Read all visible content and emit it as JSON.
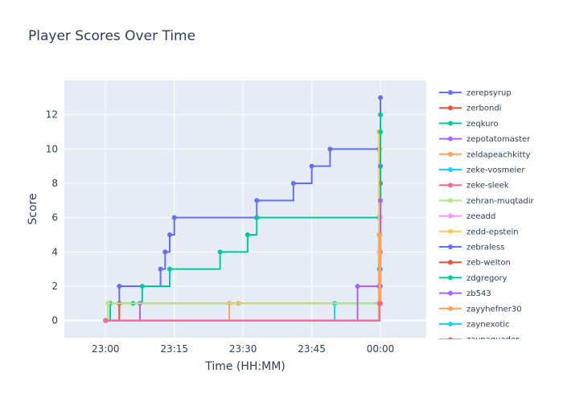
{
  "chart_data": {
    "type": "line",
    "line_shape": "step",
    "title": "Player Scores Over Time",
    "xlabel": "Time (HH:MM)",
    "ylabel": "Score",
    "x_ticks": [
      "23:00",
      "23:15",
      "23:30",
      "23:45",
      "00:00"
    ],
    "y_ticks": [
      0,
      2,
      4,
      6,
      8,
      10,
      12
    ],
    "xlim": [
      "22:51",
      "00:10"
    ],
    "ylim": [
      -1,
      14
    ],
    "grid": true,
    "legend_position": "right",
    "series": [
      {
        "name": "zerepsyrup",
        "color": "#636efa",
        "times": [
          "23:00",
          "23:03",
          "23:03",
          "23:12",
          "23:13",
          "23:14",
          "23:15",
          "23:33",
          "23:33",
          "23:41",
          "23:45",
          "23:49",
          "23:59.7",
          "00:00"
        ],
        "values": [
          0,
          1,
          2,
          3,
          4,
          5,
          6,
          6,
          7,
          8,
          9,
          10,
          10,
          13
        ]
      },
      {
        "name": "zerbondi",
        "color": "#ef553b",
        "times": [
          "23:00",
          "23:03",
          "23:59.7",
          "00:00"
        ],
        "values": [
          0,
          1,
          1,
          8
        ]
      },
      {
        "name": "zeqkuro",
        "color": "#00cc96",
        "times": [
          "23:00",
          "23:01",
          "23:06",
          "23:08",
          "23:14",
          "23:25",
          "23:31",
          "23:33",
          "23:59.7",
          "00:00"
        ],
        "values": [
          0,
          1,
          1,
          2,
          3,
          4,
          5,
          6,
          6,
          12
        ]
      },
      {
        "name": "zepotatomaster",
        "color": "#ab63fa",
        "times": [
          "23:00",
          "23:07.5",
          "23:59.7",
          "00:00"
        ],
        "values": [
          0,
          1,
          1,
          2
        ]
      },
      {
        "name": "zeldapeachkitty",
        "color": "#ffa15a",
        "times": [
          "23:00",
          "23:27",
          "23:29",
          "23:59.7",
          "00:00"
        ],
        "values": [
          0,
          1,
          1,
          1,
          11
        ]
      },
      {
        "name": "zeke-vosmeier",
        "color": "#19d3f3",
        "times": [
          "23:00",
          "23:50",
          "23:59.7",
          "00:00"
        ],
        "values": [
          0,
          1,
          1,
          3
        ]
      },
      {
        "name": "zeke-sleek",
        "color": "#ff6692",
        "times": [
          "23:00",
          "23:59.7",
          "00:00"
        ],
        "values": [
          0,
          1,
          4
        ]
      },
      {
        "name": "zehran-muqtadir",
        "color": "#b6e880",
        "times": [
          "23:00",
          "23:00.5",
          "23:59.7",
          "00:00"
        ],
        "values": [
          0,
          1,
          1,
          5
        ]
      },
      {
        "name": "zeeadd",
        "color": "#ff97ff",
        "times": [
          "23:00",
          "23:59.7",
          "00:00"
        ],
        "values": [
          0,
          4,
          6
        ]
      },
      {
        "name": "zedd-epstein",
        "color": "#fecb52",
        "times": [
          "23:00",
          "23:59.6",
          "00:00"
        ],
        "values": [
          0,
          11,
          10
        ]
      },
      {
        "name": "zebraless",
        "color": "#636efa",
        "times": [
          "23:00",
          "23:59.8",
          "00:00"
        ],
        "values": [
          0,
          3,
          9
        ]
      },
      {
        "name": "zeb-welton",
        "color": "#ef553b",
        "times": [
          "23:00",
          "23:59.8",
          "00:00"
        ],
        "values": [
          0,
          1,
          1
        ]
      },
      {
        "name": "zdgregory",
        "color": "#00cc96",
        "times": [
          "23:00",
          "23:59.8",
          "00:00"
        ],
        "values": [
          0,
          2,
          11
        ]
      },
      {
        "name": "zb543",
        "color": "#ab63fa",
        "times": [
          "23:00",
          "23:55",
          "23:59.7",
          "00:00"
        ],
        "values": [
          0,
          2,
          2,
          7
        ]
      },
      {
        "name": "zayyhefner30",
        "color": "#ffa15a",
        "times": [
          "23:00",
          "23:59.7",
          "00:00"
        ],
        "values": [
          0,
          5,
          1
        ]
      },
      {
        "name": "zaynexotic",
        "color": "#19d3f3",
        "times": [
          "23:00",
          "23:59.8",
          "00:00"
        ],
        "values": [
          0,
          1,
          1
        ]
      },
      {
        "name": "zaynaquader",
        "color": "#ff6692",
        "times": [
          "23:00",
          "23:59.8",
          "00:00"
        ],
        "values": [
          0,
          1,
          1
        ]
      }
    ]
  }
}
